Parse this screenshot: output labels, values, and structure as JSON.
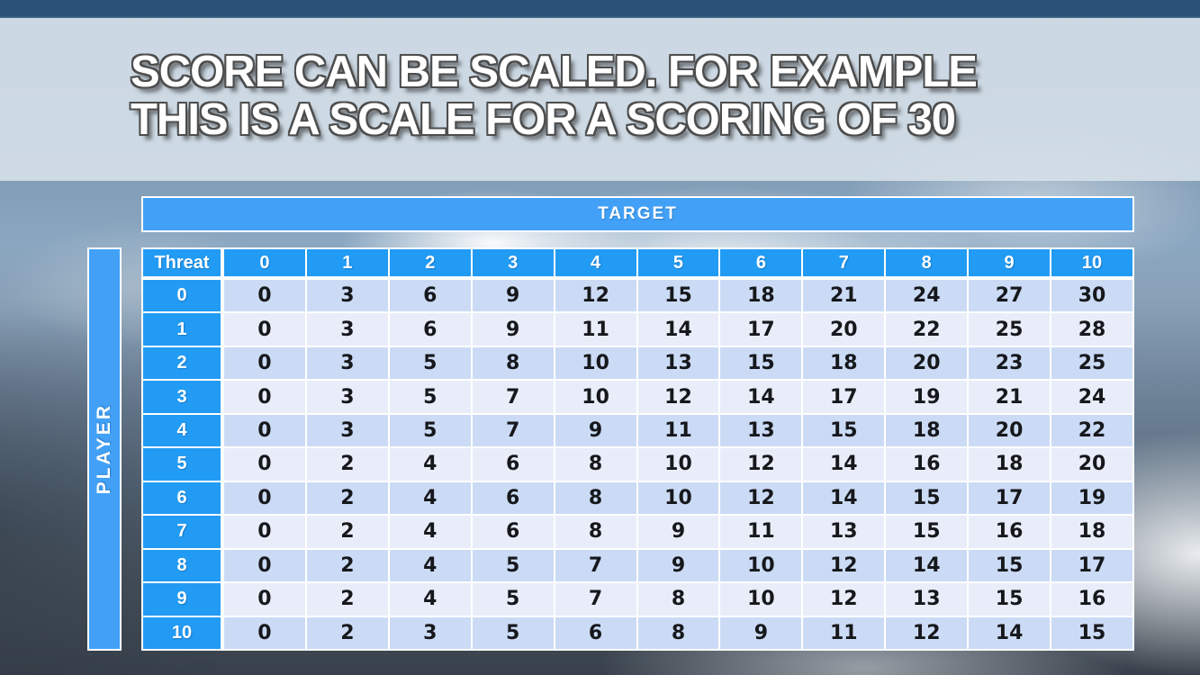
{
  "slide": {
    "title_line1": "SCORE CAN BE SCALED. FOR EXAMPLE",
    "title_line2": "THIS IS A SCALE FOR A SCORING OF 30"
  },
  "chart_data": {
    "type": "table",
    "title": "Score scale for a scoring of 30",
    "column_group_label": "TARGET",
    "row_group_label": "PLAYER",
    "corner_label": "Threat",
    "columns": [
      "0",
      "1",
      "2",
      "3",
      "4",
      "5",
      "6",
      "7",
      "8",
      "9",
      "10"
    ],
    "row_labels": [
      "0",
      "1",
      "2",
      "3",
      "4",
      "5",
      "6",
      "7",
      "8",
      "9",
      "10"
    ],
    "rows": [
      [
        0,
        3,
        6,
        9,
        12,
        15,
        18,
        21,
        24,
        27,
        30
      ],
      [
        0,
        3,
        6,
        9,
        11,
        14,
        17,
        20,
        22,
        25,
        28
      ],
      [
        0,
        3,
        5,
        8,
        10,
        13,
        15,
        18,
        20,
        23,
        25
      ],
      [
        0,
        3,
        5,
        7,
        10,
        12,
        14,
        17,
        19,
        21,
        24
      ],
      [
        0,
        3,
        5,
        7,
        9,
        11,
        13,
        15,
        18,
        20,
        22
      ],
      [
        0,
        2,
        4,
        6,
        8,
        10,
        12,
        14,
        16,
        18,
        20
      ],
      [
        0,
        2,
        4,
        6,
        8,
        10,
        12,
        14,
        15,
        17,
        19
      ],
      [
        0,
        2,
        4,
        6,
        8,
        9,
        11,
        13,
        15,
        16,
        18
      ],
      [
        0,
        2,
        4,
        5,
        7,
        9,
        10,
        12,
        14,
        15,
        17
      ],
      [
        0,
        2,
        4,
        5,
        7,
        8,
        10,
        12,
        13,
        15,
        16
      ],
      [
        0,
        2,
        3,
        5,
        6,
        8,
        9,
        11,
        12,
        14,
        15
      ]
    ]
  },
  "colors": {
    "header_blue": "#229BF4",
    "bar_blue": "#42A1F6",
    "row_shade_dark": "#CBDBF5",
    "row_shade_light": "#E8EDF9",
    "title_text": "#FFFFFF",
    "title_outline": "#4D4D4D",
    "table_grid": "#FFFFFF"
  }
}
